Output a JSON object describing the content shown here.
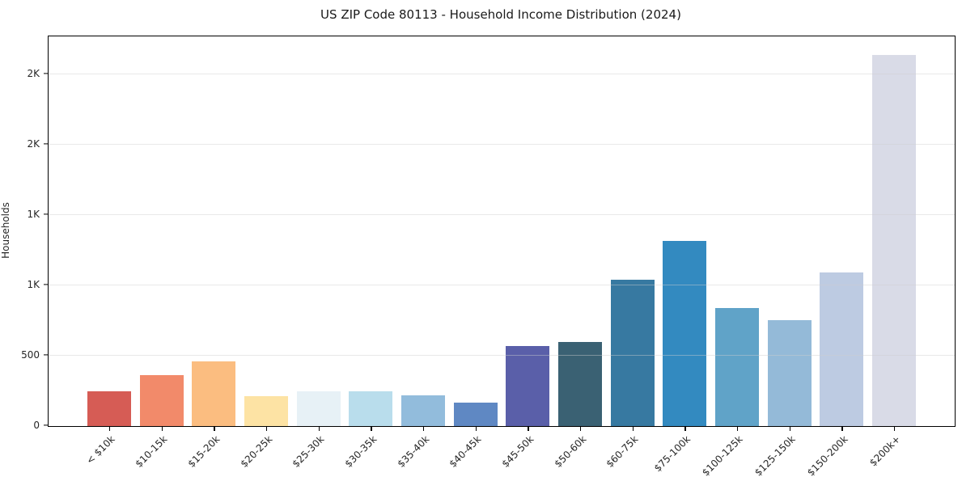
{
  "page": {
    "title": "US ZIP Code 80113 - Household Income Distribution (2024)"
  },
  "chart_data": {
    "type": "bar",
    "title": "US ZIP Code 80113 - Household Income Distribution (2024)",
    "xlabel": "",
    "ylabel": "Households",
    "categories": [
      "< $10k",
      "$10-15k",
      "$15-20k",
      "$20-25k",
      "$25-30k",
      "$30-35k",
      "$35-40k",
      "$40-45k",
      "$45-50k",
      "$50-60k",
      "$60-75k",
      "$75-100k",
      "$100-125k",
      "$125-150k",
      "$150-200k",
      "$200k+"
    ],
    "values": [
      250,
      360,
      460,
      210,
      250,
      250,
      220,
      165,
      570,
      595,
      1040,
      1315,
      840,
      755,
      1090,
      2640
    ],
    "bar_colors": [
      "#d65c55",
      "#f28a6a",
      "#fbbd80",
      "#fde3a4",
      "#e7f1f6",
      "#b9ddec",
      "#92bcdc",
      "#5f88c3",
      "#5a5fa9",
      "#3a6173",
      "#3779a1",
      "#338ac0",
      "#60a3c8",
      "#94bad8",
      "#bdcbe2",
      "#d9dbe7"
    ],
    "ylim": [
      0,
      2770
    ],
    "yticks": [
      {
        "value": 0,
        "label": "0"
      },
      {
        "value": 500,
        "label": "500"
      },
      {
        "value": 1000,
        "label": "1K"
      },
      {
        "value": 1500,
        "label": "1K"
      },
      {
        "value": 2000,
        "label": "2K"
      },
      {
        "value": 2500,
        "label": "2K"
      }
    ],
    "grid": "horizontal-light",
    "legend_position": "none"
  },
  "colors": {
    "background": "#ffffff",
    "axis": "#000000",
    "grid": "#cfcfcf",
    "title_text": "#1a1a1a",
    "tick_text": "#262626"
  }
}
